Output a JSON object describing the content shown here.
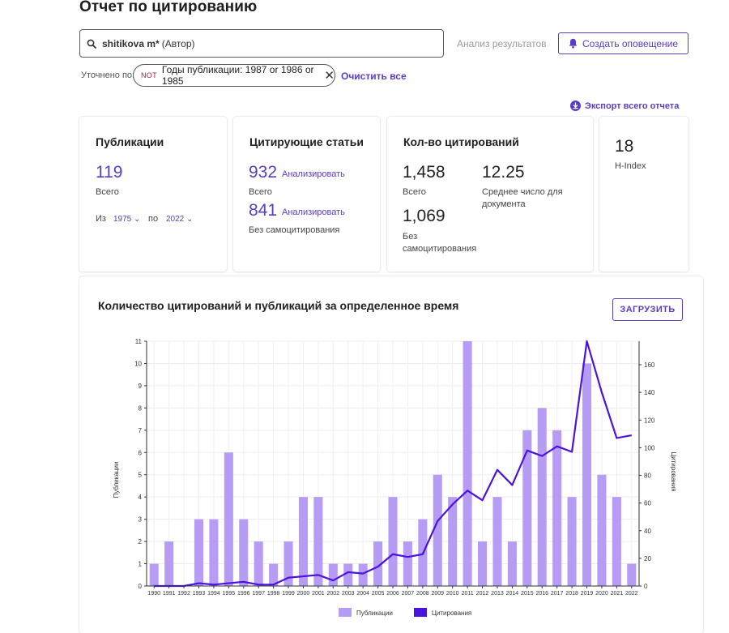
{
  "header": {
    "title": "Отчет по цитированию"
  },
  "search": {
    "query": "shitikova m*",
    "field": "(Автор)",
    "icon": "search-icon"
  },
  "toolbar": {
    "analyze_results": "Анализ результатов",
    "create_alert": "Создать оповещение"
  },
  "refine": {
    "label": "Уточнено по:",
    "chip_not": "NOT",
    "chip_text": "Годы публикации: 1987 or 1986 or 1985",
    "clear_all": "Очистить все"
  },
  "export": {
    "label": "Экспорт всего отчета"
  },
  "cards": {
    "publications": {
      "title": "Публикации",
      "count": "119",
      "count_label": "Всего",
      "from_label": "Из",
      "from_year": "1975",
      "to_label": "по",
      "to_year": "2022"
    },
    "citing": {
      "title": "Цитирующие статьи",
      "total": "932",
      "total_label": "Всего",
      "analyze_1": "Анализировать",
      "without_self": "841",
      "without_self_label": "Без самоцитирования",
      "analyze_2": "Анализировать"
    },
    "citations": {
      "title": "Кол-во цитирований",
      "total": "1,458",
      "total_label": "Всего",
      "avg": "12.25",
      "avg_label_1": "Среднее число для",
      "avg_label_2": "документа",
      "without_self": "1,069",
      "without_self_label_1": "Без",
      "without_self_label_2": "самоцитирования"
    },
    "hindex": {
      "value": "18",
      "label": "H-Index"
    }
  },
  "chart_section": {
    "title": "Количество цитирований и публикаций за определенное время",
    "download": "ЗАГРУЗИТЬ"
  },
  "chart_data": {
    "type": "bar",
    "categories": [
      "1990",
      "1991",
      "1992",
      "1993",
      "1994",
      "1995",
      "1996",
      "1997",
      "1998",
      "1999",
      "2000",
      "2001",
      "2002",
      "2003",
      "2004",
      "2005",
      "2006",
      "2007",
      "2008",
      "2009",
      "2010",
      "2011",
      "2012",
      "2013",
      "2014",
      "2015",
      "2016",
      "2017",
      "2018",
      "2019",
      "2020",
      "2021",
      "2022"
    ],
    "series": [
      {
        "name": "Публикации",
        "kind": "bar",
        "axis": "left",
        "color": "#b79cf5",
        "values": [
          1,
          2,
          0,
          3,
          3,
          6,
          3,
          2,
          1,
          2,
          4,
          4,
          1,
          1,
          1,
          2,
          4,
          2,
          3,
          5,
          4,
          11,
          2,
          4,
          2,
          7,
          8,
          7,
          4,
          10,
          5,
          4,
          1
        ]
      },
      {
        "name": "Цитирования",
        "kind": "line",
        "axis": "right",
        "color": "#4a13e0",
        "values": [
          0,
          0,
          0,
          2,
          1,
          2,
          3,
          1,
          1,
          6,
          7,
          8,
          4,
          10,
          9,
          14,
          23,
          21,
          23,
          47,
          59,
          69,
          62,
          84,
          73,
          98,
          94,
          101,
          97,
          177,
          140,
          107,
          109
        ]
      }
    ],
    "ylabel": "Публикации",
    "y2label": "Цитирования",
    "ylim": [
      0,
      11
    ],
    "y2lim": [
      0,
      177
    ],
    "yticks": [
      0,
      1,
      2,
      3,
      4,
      5,
      6,
      7,
      8,
      9,
      10,
      11
    ],
    "y2ticks": [
      0,
      20,
      40,
      60,
      80,
      100,
      120,
      140,
      160
    ],
    "grid": true,
    "legend_position": "bottom"
  }
}
